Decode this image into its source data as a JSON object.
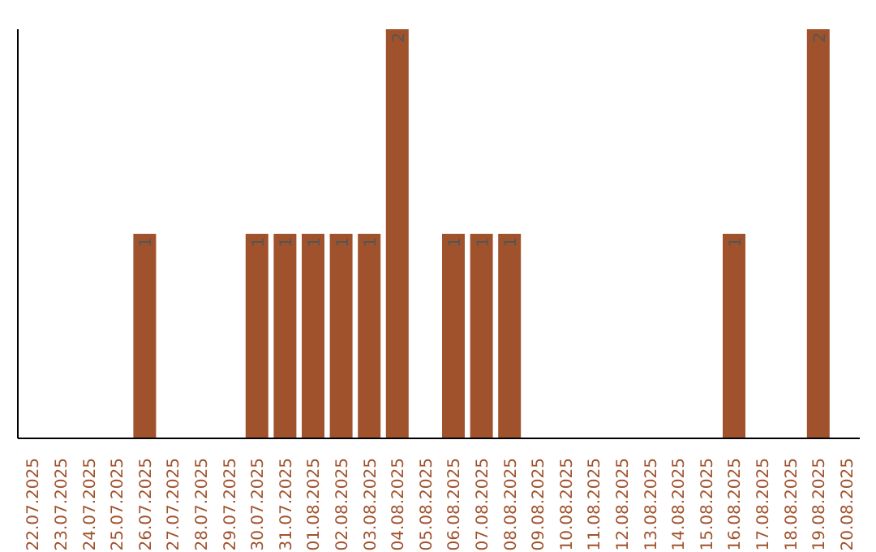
{
  "chart_data": {
    "type": "bar",
    "categories": [
      "22.07.2025",
      "23.07.2025",
      "24.07.2025",
      "25.07.2025",
      "26.07.2025",
      "27.07.2025",
      "28.07.2025",
      "29.07.2025",
      "30.07.2025",
      "31.07.2025",
      "01.08.2025",
      "02.08.2025",
      "03.08.2025",
      "04.08.2025",
      "05.08.2025",
      "06.08.2025",
      "07.08.2025",
      "08.08.2025",
      "09.08.2025",
      "10.08.2025",
      "11.08.2025",
      "12.08.2025",
      "13.08.2025",
      "14.08.2025",
      "15.08.2025",
      "16.08.2025",
      "17.08.2025",
      "18.08.2025",
      "19.08.2025",
      "20.08.2025"
    ],
    "values": [
      0,
      0,
      0,
      0,
      1,
      0,
      0,
      0,
      1,
      1,
      1,
      1,
      1,
      2,
      0,
      1,
      1,
      1,
      0,
      0,
      0,
      0,
      0,
      0,
      0,
      1,
      0,
      0,
      2,
      0
    ],
    "value_labels": [
      null,
      null,
      null,
      null,
      "1",
      null,
      null,
      null,
      "1",
      "1",
      "1",
      "1",
      "1",
      "2",
      null,
      "1",
      "1",
      "1",
      null,
      null,
      null,
      null,
      null,
      null,
      null,
      "1",
      null,
      null,
      "2",
      null
    ],
    "color": "#a0522d",
    "grid": false,
    "legend": false
  }
}
